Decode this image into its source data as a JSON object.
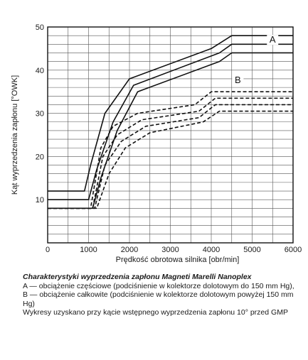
{
  "chart_data": {
    "type": "line",
    "title": "",
    "xlabel": "Prędkość obrotowa silnika [obr/min]",
    "ylabel": "Kąt wyprzedzenia zapłonu [°OWK]",
    "xlim": [
      0,
      6000
    ],
    "ylim": [
      0,
      50
    ],
    "x_ticks": [
      "0",
      "1000",
      "2000",
      "3000",
      "4000",
      "5000",
      "6000"
    ],
    "y_ticks": [
      "10",
      "20",
      "30",
      "40",
      "50"
    ],
    "grid": true,
    "series": [
      {
        "name": "A",
        "style": "solid",
        "x": [
          0,
          900,
          1050,
          1400,
          2000,
          4000,
          4500,
          6000
        ],
        "y": [
          12,
          12,
          18,
          30,
          38,
          45,
          48,
          48
        ]
      },
      {
        "name": "",
        "style": "solid",
        "x": [
          0,
          1000,
          1200,
          1600,
          2100,
          4200,
          4500,
          6000
        ],
        "y": [
          10,
          10,
          17,
          28,
          36.5,
          44,
          46,
          46
        ]
      },
      {
        "name": "",
        "style": "solid",
        "x": [
          0,
          1100,
          1300,
          1700,
          2200,
          4200,
          4500,
          6000
        ],
        "y": [
          8,
          8,
          15,
          26,
          35,
          42,
          44,
          44
        ]
      },
      {
        "name": "B",
        "style": "dashed",
        "x": [
          0,
          1050,
          1300,
          1600,
          2200,
          3600,
          4000,
          6000
        ],
        "y": [
          8,
          8,
          22,
          27,
          30,
          32,
          35,
          35
        ]
      },
      {
        "name": "",
        "style": "dashed",
        "x": [
          0,
          1100,
          1350,
          1700,
          2300,
          3700,
          4100,
          6000
        ],
        "y": [
          8,
          8,
          20,
          25,
          28.5,
          30.5,
          33.5,
          33.5
        ]
      },
      {
        "name": "",
        "style": "dashed",
        "x": [
          0,
          1150,
          1400,
          1800,
          2400,
          3700,
          4100,
          6000
        ],
        "y": [
          8,
          8,
          18,
          23.5,
          27,
          29,
          32,
          32
        ]
      },
      {
        "name": "",
        "style": "dashed",
        "x": [
          0,
          1200,
          1500,
          1900,
          2500,
          3800,
          4200,
          6000
        ],
        "y": [
          8,
          8,
          16,
          22,
          25.5,
          28,
          30.5,
          30.5
        ]
      }
    ],
    "labels": {
      "a": "A",
      "b": "B"
    }
  },
  "caption": {
    "title": "Charakterystyki wyprzedzenia zapłonu Magneti Marelli Nanoplex",
    "line1": "A — obciążenie częściowe (podciśnienie w kolektorze dolotowym do 150 mm Hg), B — obciążenie całkowite (podciśnienie w kolektorze dolotowym powyżej 150 mm Hg)",
    "line2": "Wykresy uzyskano przy kącie wstępnego wyprzedzenia zapłonu 10° przed GMP"
  }
}
